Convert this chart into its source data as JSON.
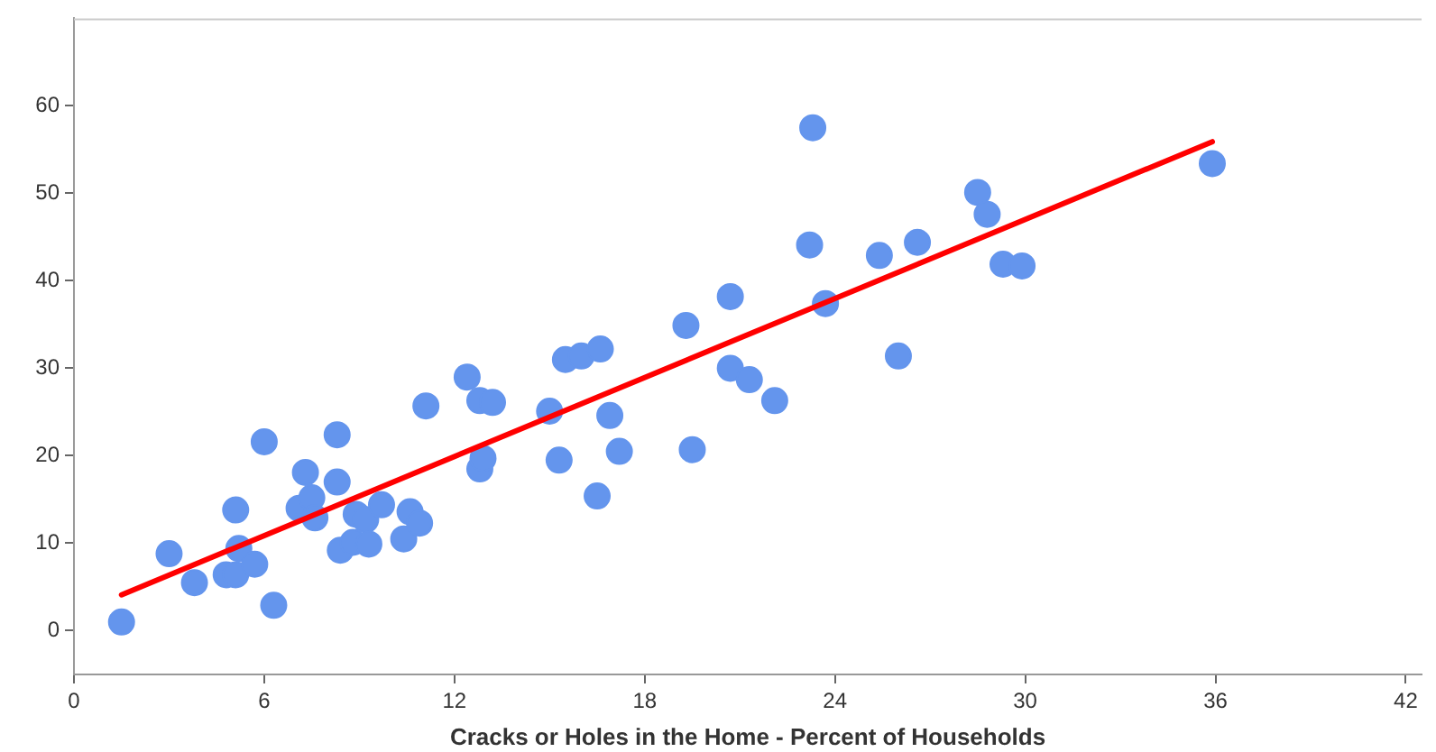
{
  "chart_data": {
    "type": "scatter",
    "xlabel": "Cracks or Holes in the Home - Percent of Households",
    "xlim": [
      0,
      42.5
    ],
    "ylim": [
      -5,
      70
    ],
    "xticks": [
      0,
      6,
      12,
      18,
      24,
      30,
      36,
      42
    ],
    "yticks": [
      0,
      10,
      20,
      30,
      40,
      50,
      60
    ],
    "grid": false,
    "legend": false,
    "marker": "circle",
    "series": [
      {
        "color": "#6495ed",
        "x": [
          1.5,
          3.0,
          3.8,
          4.8,
          5.1,
          5.1,
          5.2,
          5.7,
          6.0,
          6.3,
          7.1,
          7.3,
          7.5,
          7.6,
          8.3,
          8.3,
          8.4,
          8.8,
          8.9,
          9.2,
          9.3,
          9.7,
          10.4,
          10.6,
          10.9,
          11.1,
          12.4,
          12.8,
          12.8,
          12.9,
          13.2,
          15.0,
          15.3,
          15.5,
          16.0,
          16.6,
          16.5,
          16.9,
          17.2,
          19.3,
          19.5,
          20.7,
          20.7,
          21.3,
          22.1,
          23.3,
          23.2,
          23.7,
          25.4,
          26.0,
          26.6,
          28.5,
          28.8,
          29.3,
          29.9,
          35.9
        ],
        "values": [
          1.0,
          8.8,
          5.5,
          6.4,
          6.4,
          13.8,
          9.4,
          7.6,
          21.6,
          2.9,
          14.0,
          18.1,
          15.2,
          12.9,
          22.4,
          17.0,
          9.2,
          10.1,
          13.3,
          12.7,
          9.9,
          14.4,
          10.5,
          13.6,
          12.3,
          25.7,
          29.0,
          26.3,
          18.5,
          19.7,
          26.1,
          25.1,
          19.5,
          31.0,
          31.4,
          32.2,
          15.4,
          24.6,
          20.5,
          34.9,
          20.7,
          38.2,
          30.0,
          28.7,
          26.3,
          57.5,
          44.1,
          37.4,
          42.9,
          31.4,
          44.4,
          50.1,
          47.6,
          41.9,
          41.7,
          53.4
        ]
      },
      {
        "type": "line",
        "color": "#ff0000",
        "x": [
          1.5,
          35.9
        ],
        "values": [
          4.1,
          55.9
        ],
        "marker": "none"
      }
    ]
  }
}
